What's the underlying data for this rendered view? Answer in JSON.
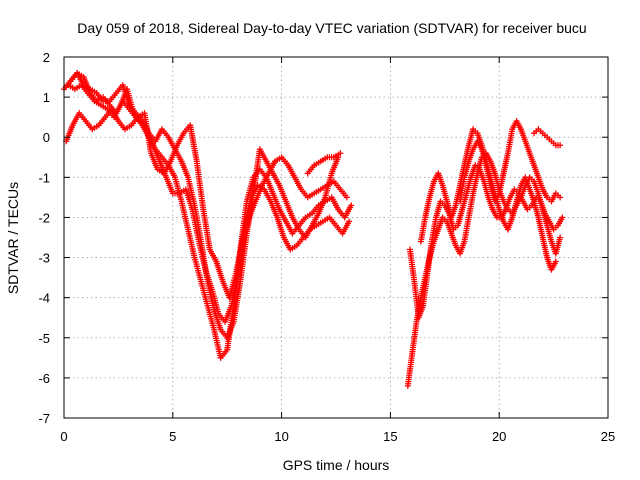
{
  "chart_data": {
    "type": "scatter",
    "title": "Day 059 of 2018, Sidereal Day-to-day VTEC variation (SDTVAR) for receiver bucu",
    "xlabel": "GPS time / hours",
    "ylabel": "SDTVAR / TECUs",
    "xlim": [
      0,
      25
    ],
    "ylim": [
      -7,
      2
    ],
    "xticks": [
      "0",
      "5",
      "10",
      "15",
      "20",
      "25"
    ],
    "yticks": [
      "-7",
      "-6",
      "-5",
      "-4",
      "-3",
      "-2",
      "-1",
      "0",
      "1",
      "2"
    ],
    "grid": true,
    "marker": "plus",
    "color": "#ff0000",
    "series": [
      {
        "x": [
          0.0,
          0.3,
          0.6,
          0.9,
          1.2,
          1.5,
          1.8,
          2.1,
          2.4,
          2.7,
          3.0,
          3.3,
          3.6,
          3.9,
          4.2,
          4.5,
          4.8,
          5.1,
          5.4,
          5.7,
          6.0,
          6.3,
          6.6,
          6.9,
          7.2,
          7.5,
          7.8,
          8.1,
          8.4,
          8.7,
          9.0,
          9.3,
          9.6,
          9.9,
          10.2,
          10.5,
          10.8,
          11.1,
          11.4,
          11.7,
          12.0,
          12.3,
          12.6,
          12.9,
          13.2
        ],
        "y": [
          1.2,
          1.4,
          1.6,
          1.5,
          1.1,
          0.9,
          1.0,
          0.8,
          0.6,
          0.9,
          0.7,
          0.5,
          0.3,
          0.0,
          -0.3,
          -0.5,
          -0.7,
          -1.0,
          -1.6,
          -2.3,
          -3.0,
          -3.6,
          -4.2,
          -4.8,
          -5.5,
          -5.3,
          -4.2,
          -2.8,
          -1.6,
          -1.0,
          -0.8,
          -1.0,
          -1.4,
          -1.8,
          -2.1,
          -2.4,
          -2.2,
          -2.0,
          -1.9,
          -1.7,
          -1.6,
          -1.5,
          -1.8,
          -2.0,
          -1.7
        ]
      },
      {
        "x": [
          0.2,
          0.5,
          0.8,
          1.1,
          1.4,
          1.7,
          2.0,
          2.3,
          2.6,
          2.9,
          3.2,
          3.5,
          3.8,
          4.1,
          4.4,
          4.7,
          5.0,
          5.3,
          5.6,
          5.9,
          6.2,
          6.5,
          6.8,
          7.1,
          7.4,
          7.7,
          8.0,
          8.3,
          8.6,
          8.9,
          9.2,
          9.5,
          9.8,
          10.1,
          10.4,
          10.7,
          11.0,
          11.3,
          11.6,
          11.9,
          12.2,
          12.5,
          12.8,
          13.1
        ],
        "y": [
          1.3,
          1.2,
          1.3,
          1.1,
          0.9,
          0.8,
          0.7,
          0.5,
          0.8,
          1.2,
          0.6,
          0.4,
          0.2,
          -0.2,
          -0.6,
          -1.0,
          -1.4,
          -1.4,
          -1.3,
          -1.8,
          -2.6,
          -3.3,
          -3.8,
          -4.4,
          -4.6,
          -4.2,
          -3.3,
          -2.2,
          -1.5,
          -1.2,
          -1.3,
          -1.6,
          -2.0,
          -2.5,
          -2.8,
          -2.7,
          -2.5,
          -2.3,
          -2.2,
          -2.1,
          -2.0,
          -2.2,
          -2.4,
          -2.1
        ]
      },
      {
        "x": [
          0.1,
          0.4,
          0.7,
          1.0,
          1.3,
          1.6,
          1.9,
          2.2,
          2.5,
          2.8,
          3.1,
          3.4,
          3.7,
          4.0,
          4.3,
          4.6,
          4.9,
          5.2,
          5.5,
          5.8,
          6.1,
          6.4,
          6.7,
          7.0,
          7.3,
          7.6,
          7.9,
          8.2,
          8.5,
          8.8,
          9.1,
          9.4,
          9.7,
          10.0,
          10.3,
          10.6,
          10.9,
          11.2,
          11.5,
          11.8,
          12.1,
          12.4,
          12.7,
          13.0
        ],
        "y": [
          -0.1,
          0.3,
          0.6,
          0.4,
          0.2,
          0.3,
          0.5,
          0.7,
          0.4,
          0.2,
          0.3,
          0.5,
          0.6,
          -0.4,
          -0.8,
          -0.9,
          -0.6,
          -0.2,
          0.1,
          0.3,
          -0.6,
          -1.8,
          -2.8,
          -3.1,
          -3.6,
          -4.0,
          -3.4,
          -2.6,
          -2.0,
          -1.6,
          -1.2,
          -0.9,
          -0.6,
          -0.5,
          -0.7,
          -1.0,
          -1.3,
          -1.5,
          -1.4,
          -1.3,
          -1.2,
          -1.1,
          -1.3,
          -1.5
        ]
      },
      {
        "x": [
          0.3,
          0.6,
          0.9,
          1.2,
          1.5,
          1.8,
          2.1,
          2.4,
          2.7,
          3.0,
          3.3,
          3.6,
          3.9,
          4.2,
          4.5,
          4.8,
          5.1,
          5.4,
          5.7,
          6.0,
          6.3,
          6.6,
          6.9,
          7.2,
          7.5,
          7.8,
          8.1,
          8.4,
          8.7,
          9.0,
          9.3,
          9.6,
          9.9,
          10.2,
          10.5,
          10.8,
          11.1,
          11.4,
          11.7,
          12.0,
          12.3,
          12.6
        ],
        "y": [
          1.4,
          1.6,
          1.3,
          1.2,
          1.1,
          0.9,
          0.9,
          1.1,
          1.3,
          0.8,
          0.6,
          0.4,
          0.1,
          -0.1,
          0.2,
          0.0,
          -0.3,
          -0.6,
          -1.0,
          -1.7,
          -2.6,
          -3.6,
          -4.3,
          -4.8,
          -5.0,
          -4.6,
          -3.6,
          -2.4,
          -1.4,
          -0.3,
          -0.6,
          -0.9,
          -1.2,
          -1.6,
          -2.0,
          -2.3,
          -2.5,
          -2.2,
          -1.9,
          -1.5,
          -0.9,
          -0.5
        ]
      },
      {
        "x": [
          15.8,
          16.0,
          16.2,
          16.4,
          16.6,
          16.8,
          17.0,
          17.2,
          17.4,
          17.6,
          17.8,
          18.0,
          18.2,
          18.4,
          18.6,
          18.8,
          19.0,
          19.2,
          19.4,
          19.6,
          19.8,
          20.0,
          20.2,
          20.4,
          20.6,
          20.8,
          21.0,
          21.2,
          21.4,
          21.6,
          21.8,
          22.0,
          22.2,
          22.4,
          22.6,
          22.8
        ],
        "y": [
          -6.2,
          -5.4,
          -4.6,
          -4.0,
          -3.5,
          -3.0,
          -2.6,
          -2.3,
          -2.0,
          -2.1,
          -2.4,
          -2.7,
          -2.9,
          -2.6,
          -2.0,
          -1.4,
          -0.9,
          -0.5,
          -0.4,
          -0.6,
          -0.9,
          -1.3,
          -1.6,
          -1.8,
          -1.9,
          -1.7,
          -1.5,
          -1.2,
          -1.0,
          -1.1,
          -1.4,
          -1.8,
          -2.2,
          -2.6,
          -2.9,
          -2.5
        ]
      },
      {
        "x": [
          15.9,
          16.1,
          16.3,
          16.5,
          16.7,
          16.9,
          17.1,
          17.3,
          17.5,
          17.7,
          17.9,
          18.1,
          18.3,
          18.5,
          18.7,
          18.9,
          19.1,
          19.3,
          19.5,
          19.7,
          19.9,
          20.1,
          20.3,
          20.5,
          20.7,
          20.9,
          21.1,
          21.3,
          21.5,
          21.7,
          21.9,
          22.1,
          22.3,
          22.5,
          22.7,
          22.9
        ],
        "y": [
          -2.8,
          -3.6,
          -4.5,
          -4.2,
          -3.4,
          -2.6,
          -2.0,
          -1.6,
          -1.7,
          -1.9,
          -2.3,
          -2.2,
          -1.8,
          -1.4,
          -1.0,
          -0.7,
          -0.8,
          -1.1,
          -1.5,
          -1.8,
          -2.0,
          -2.0,
          -1.8,
          -1.5,
          -1.3,
          -1.4,
          -1.6,
          -1.8,
          -1.7,
          -1.5,
          -1.6,
          -1.9,
          -2.1,
          -2.3,
          -2.2,
          -2.0
        ]
      },
      {
        "x": [
          16.4,
          16.6,
          16.8,
          17.0,
          17.2,
          17.4,
          17.6,
          17.8,
          18.0,
          18.2,
          18.4,
          18.6,
          18.8,
          19.0,
          19.2,
          19.4,
          19.6,
          19.8,
          20.0,
          20.2,
          20.4,
          20.6,
          20.8,
          21.0,
          21.2,
          21.4,
          21.6,
          21.8,
          22.0,
          22.2,
          22.4,
          22.6
        ],
        "y": [
          -2.6,
          -2.0,
          -1.5,
          -1.1,
          -0.9,
          -1.2,
          -1.6,
          -2.0,
          -1.7,
          -1.2,
          -0.7,
          -0.2,
          0.2,
          0.1,
          -0.2,
          -0.6,
          -1.0,
          -1.4,
          -1.8,
          -2.1,
          -2.3,
          -2.0,
          -1.6,
          -1.2,
          -1.0,
          -1.3,
          -1.6,
          -2.0,
          -2.5,
          -3.0,
          -3.3,
          -3.1
        ]
      },
      {
        "x": [
          18.2,
          18.4,
          18.6,
          18.8,
          19.0,
          19.2,
          19.4,
          19.6,
          19.8,
          20.0,
          20.2,
          20.4,
          20.6,
          20.8,
          21.0,
          21.2,
          21.4,
          21.6,
          21.8,
          22.0,
          22.2,
          22.4,
          22.6,
          22.8
        ],
        "y": [
          -1.6,
          -1.0,
          -0.6,
          -0.3,
          -0.1,
          -0.3,
          -0.7,
          -1.2,
          -1.6,
          -1.4,
          -0.9,
          -0.4,
          0.2,
          0.4,
          0.2,
          -0.1,
          -0.4,
          -0.7,
          -1.0,
          -1.3,
          -1.5,
          -1.6,
          -1.4,
          -1.5
        ]
      },
      {
        "x": [
          21.6,
          21.8,
          22.0,
          22.2,
          22.4,
          22.6,
          22.8
        ],
        "y": [
          0.1,
          0.2,
          0.1,
          0.0,
          -0.1,
          -0.2,
          -0.2
        ]
      },
      {
        "x": [
          11.2,
          11.5,
          11.8,
          12.1,
          12.4,
          12.7
        ],
        "y": [
          -0.9,
          -0.7,
          -0.6,
          -0.5,
          -0.5,
          -0.4
        ]
      }
    ]
  }
}
